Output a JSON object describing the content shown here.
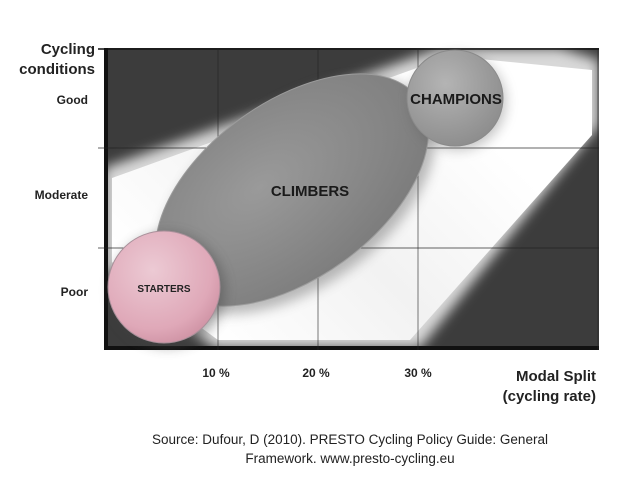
{
  "y_axis": {
    "title_line1": "Cycling",
    "title_line2": "conditions",
    "levels": [
      "Good",
      "Moderate",
      "Poor"
    ]
  },
  "x_axis": {
    "title_line1": "Modal Split",
    "title_line2": "(cycling rate)",
    "ticks": [
      "10 %",
      "20 %",
      "30 %"
    ]
  },
  "stages": {
    "starters": "STARTERS",
    "climbers": "CLIMBERS",
    "champions": "CHAMPIONS"
  },
  "source": {
    "line1": "Source:  Dufour,  D (2010). PRESTO Cycling Policy Guide: General",
    "line2": "Framework.  www.presto-cycling.eu"
  },
  "colors": {
    "background_dark": "#3c3c3c",
    "band_light": "#f4f4f4",
    "climbers_fill": "#8e8e8e",
    "champions_fill": "#a2a2a2",
    "starters_fill": "#dfa8b8",
    "text": "#222222"
  }
}
